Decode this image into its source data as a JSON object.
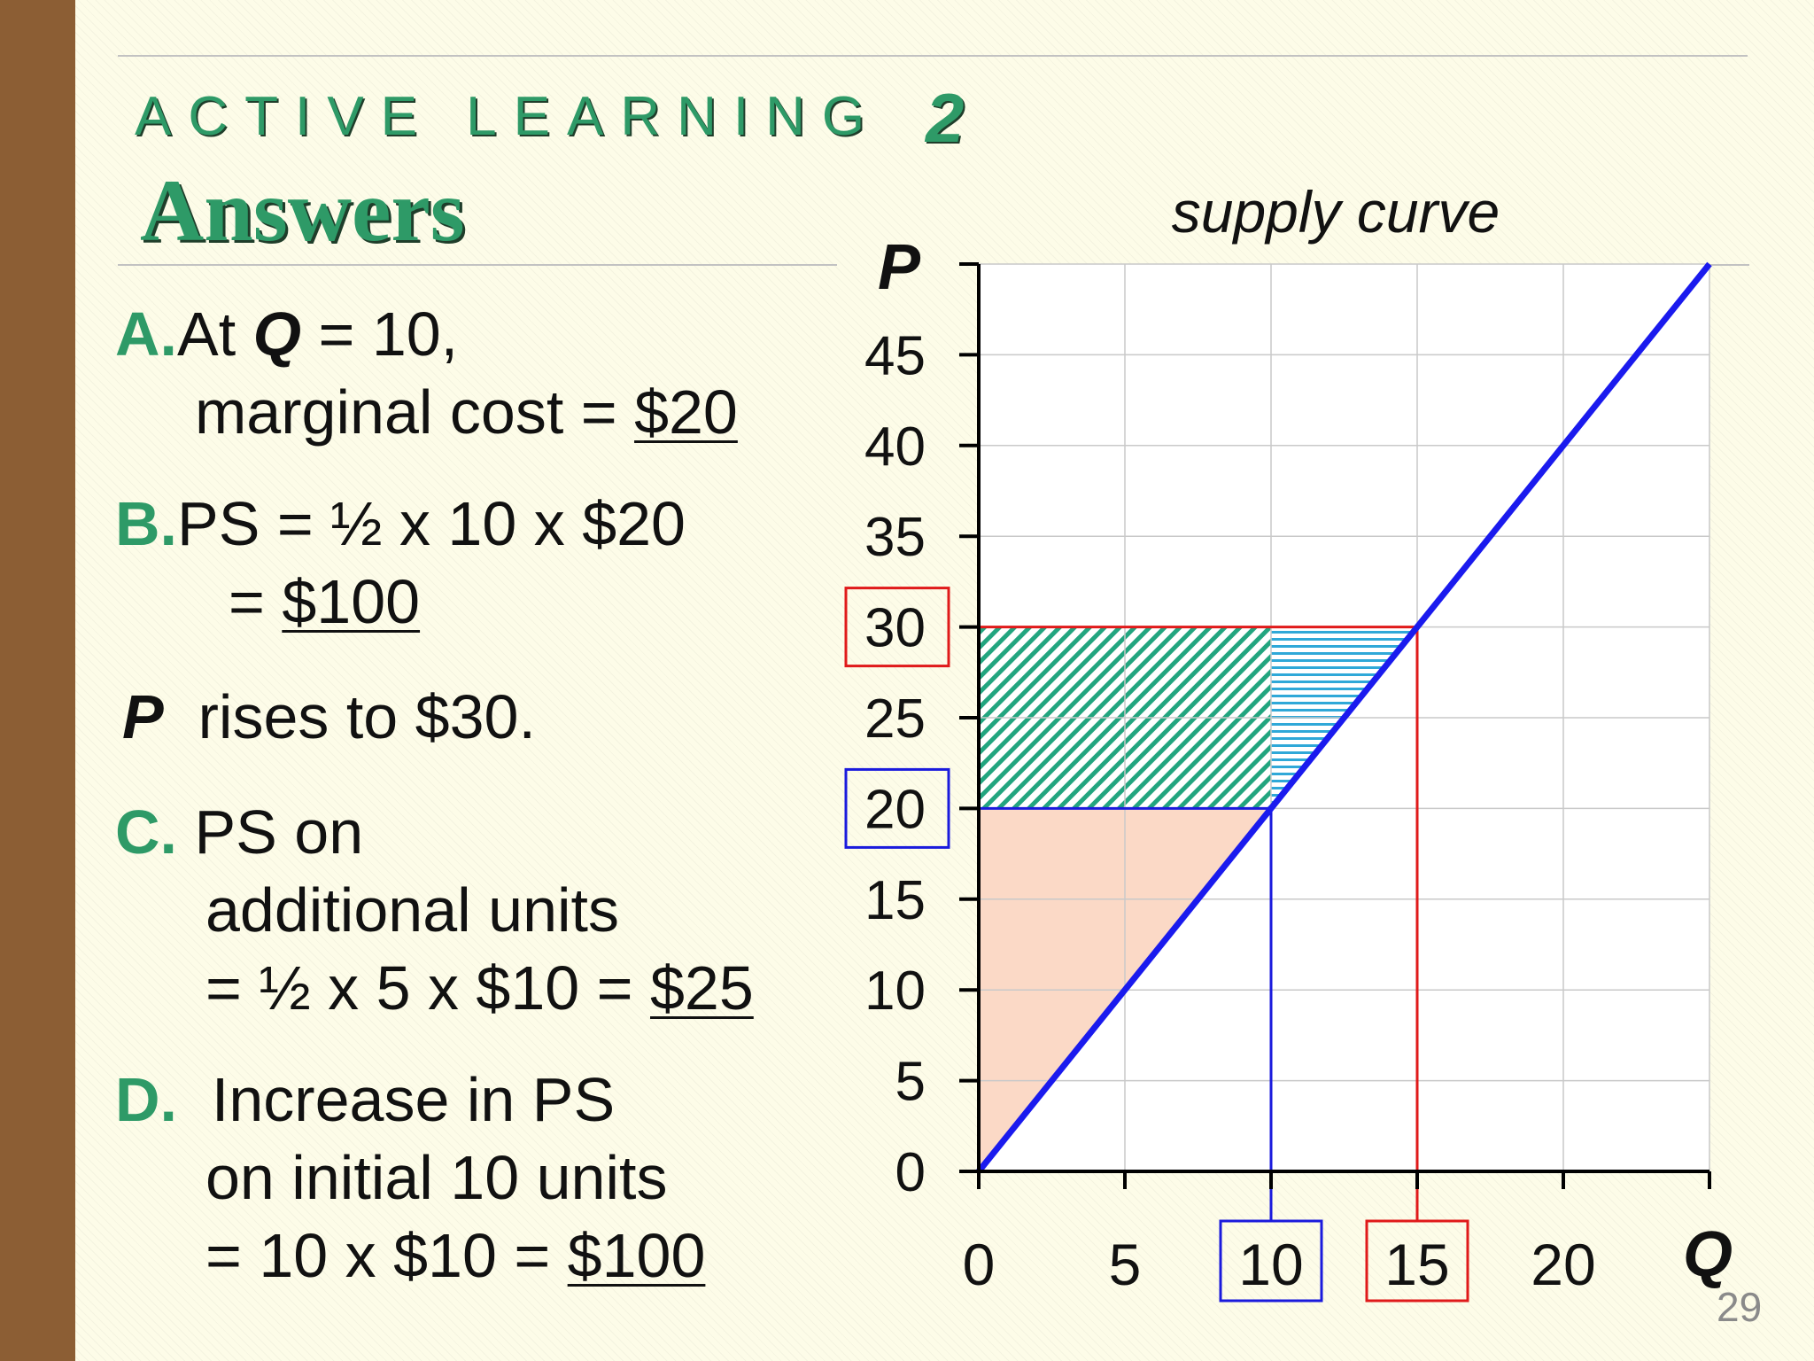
{
  "slide": {
    "heading": "ACTIVE LEARNING",
    "heading_number": "2",
    "subheading": "Answers",
    "slide_number": "29"
  },
  "answers": {
    "a": {
      "letter": "A.",
      "line1_pre": "At ",
      "line1_var": "Q",
      "line1_post": " = 10,",
      "line2_pre": "marginal cost = ",
      "line2_value": "$20"
    },
    "b": {
      "letter": "B.",
      "line1": "PS = ½ x 10 x $20",
      "line2_pre": "= ",
      "line2_value": "$100"
    },
    "p_rise": {
      "var": "P",
      "text": "rises to $30."
    },
    "c": {
      "letter": "C.",
      "line1": "PS on",
      "line2": "additional units",
      "line3_pre": "= ½ x 5 x $10 = ",
      "line3_value": "$25"
    },
    "d": {
      "letter": "D.",
      "line1": "Increase in PS",
      "line2": "on initial 10 units",
      "line3_pre": "= 10 x $10 = ",
      "line3_value": "$100"
    }
  },
  "chart_data": {
    "type": "line",
    "title": "supply curve",
    "xlabel": "Q",
    "ylabel": "P",
    "xlim": [
      0,
      25
    ],
    "ylim": [
      0,
      50
    ],
    "x_ticks": [
      0,
      5,
      10,
      15,
      20
    ],
    "y_ticks": [
      0,
      5,
      10,
      15,
      20,
      25,
      30,
      35,
      40,
      45
    ],
    "grid": true,
    "series": [
      {
        "color": "#1a1aee",
        "points": [
          [
            0,
            0
          ],
          [
            25,
            50
          ]
        ]
      }
    ],
    "boxed_ticks": [
      {
        "axis": "x",
        "value": 10,
        "color": "#1a1add"
      },
      {
        "axis": "x",
        "value": 15,
        "color": "#e01a1a"
      },
      {
        "axis": "y",
        "value": 20,
        "color": "#1a1add"
      },
      {
        "axis": "y",
        "value": 30,
        "color": "#e01a1a"
      }
    ],
    "guide_lines": [
      {
        "color": "#1a1add",
        "q": 10,
        "p": 20
      },
      {
        "color": "#e01a1a",
        "q": 15,
        "p": 30
      }
    ],
    "regions": [
      {
        "fill": "#fbd9c6",
        "pattern": "solid",
        "points": [
          [
            0,
            0
          ],
          [
            10,
            20
          ],
          [
            0,
            20
          ]
        ]
      },
      {
        "fill": "#22a57f",
        "pattern": "diagonal",
        "points": [
          [
            0,
            20
          ],
          [
            10,
            20
          ],
          [
            10,
            30
          ],
          [
            0,
            30
          ]
        ]
      },
      {
        "fill": "#2fa8d8",
        "pattern": "horizontal",
        "points": [
          [
            10,
            20
          ],
          [
            15,
            30
          ],
          [
            10,
            30
          ]
        ]
      }
    ]
  }
}
